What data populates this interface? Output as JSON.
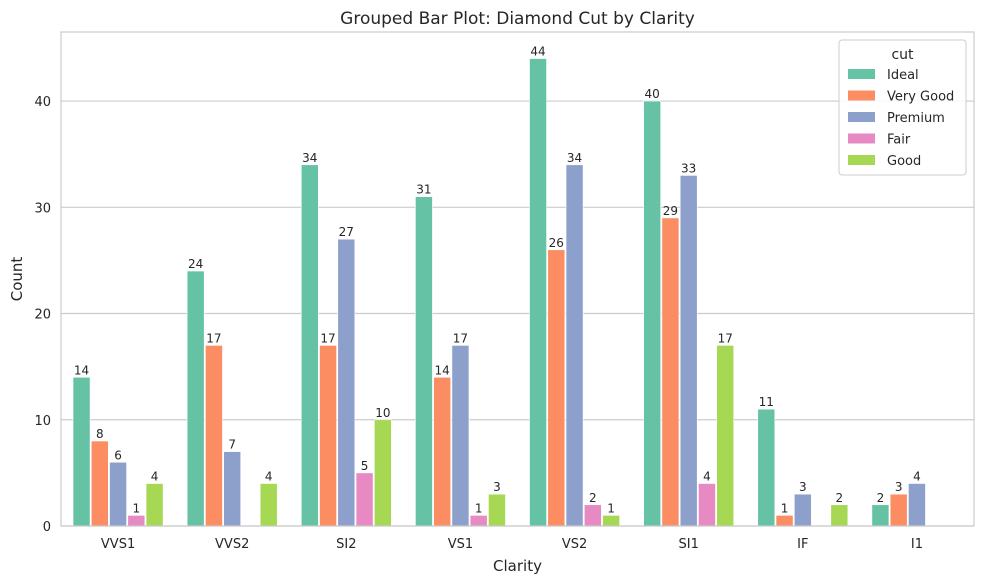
{
  "chart_data": {
    "type": "bar",
    "title": "Grouped Bar Plot: Diamond Cut by Clarity",
    "xlabel": "Clarity",
    "ylabel": "Count",
    "categories": [
      "VVS1",
      "VVS2",
      "SI2",
      "VS1",
      "VS2",
      "SI1",
      "IF",
      "I1"
    ],
    "ylim": [
      0,
      46.5
    ],
    "yticks": [
      0,
      10,
      20,
      30,
      40
    ],
    "grid": "horizontal",
    "legend": {
      "title": "cut",
      "placement": "top-right"
    },
    "series": [
      {
        "name": "Ideal",
        "color": "#66c2a5",
        "values": [
          14,
          24,
          34,
          31,
          44,
          40,
          11,
          2
        ]
      },
      {
        "name": "Very Good",
        "color": "#fc8d62",
        "values": [
          8,
          17,
          17,
          14,
          26,
          29,
          1,
          3
        ]
      },
      {
        "name": "Premium",
        "color": "#8da0cb",
        "values": [
          6,
          7,
          27,
          17,
          34,
          33,
          3,
          4
        ]
      },
      {
        "name": "Fair",
        "color": "#e78ac3",
        "values": [
          1,
          0,
          5,
          1,
          2,
          4,
          0,
          0
        ]
      },
      {
        "name": "Good",
        "color": "#a6d854",
        "values": [
          4,
          4,
          10,
          3,
          1,
          17,
          2,
          0
        ]
      }
    ],
    "bar_labels": [
      [
        "14",
        "24",
        "34",
        "31",
        "44",
        "40",
        "11",
        "2"
      ],
      [
        "8",
        "17",
        "17",
        "14",
        "26",
        "29",
        "1",
        "3"
      ],
      [
        "6",
        "7",
        "27",
        "17",
        "34",
        "33",
        "3",
        "4"
      ],
      [
        "1",
        "",
        "5",
        "1",
        "2",
        "4",
        "",
        ""
      ],
      [
        "4",
        "4",
        "10",
        "3",
        "1",
        "17",
        "2",
        ""
      ]
    ]
  }
}
